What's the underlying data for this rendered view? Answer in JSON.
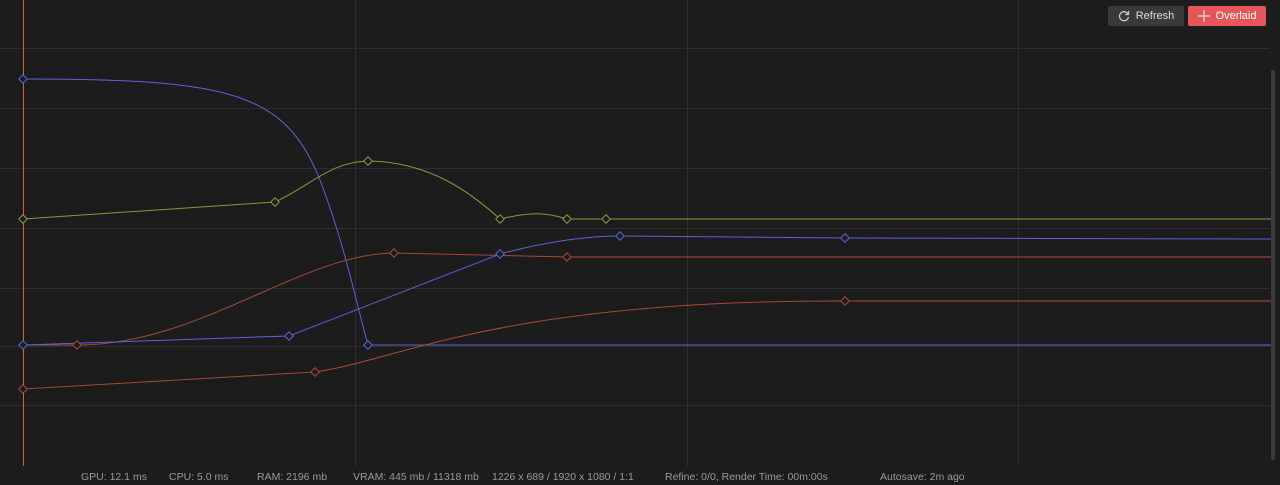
{
  "toolbar": {
    "buttons": [
      {
        "label": "Refresh"
      },
      {
        "label": "Overlaid"
      }
    ]
  },
  "status_bar": {
    "items": [
      "GPU: 12.1 ms",
      "CPU: 5.0 ms",
      "RAM: 2196 mb",
      "VRAM: 445 mb / 11318 mb",
      "1226 x 689 / 1920 x 1080 / 1:1",
      "Refine: 0/0, Render Time: 00m:00s",
      "Autosave: 2m ago"
    ]
  }
}
